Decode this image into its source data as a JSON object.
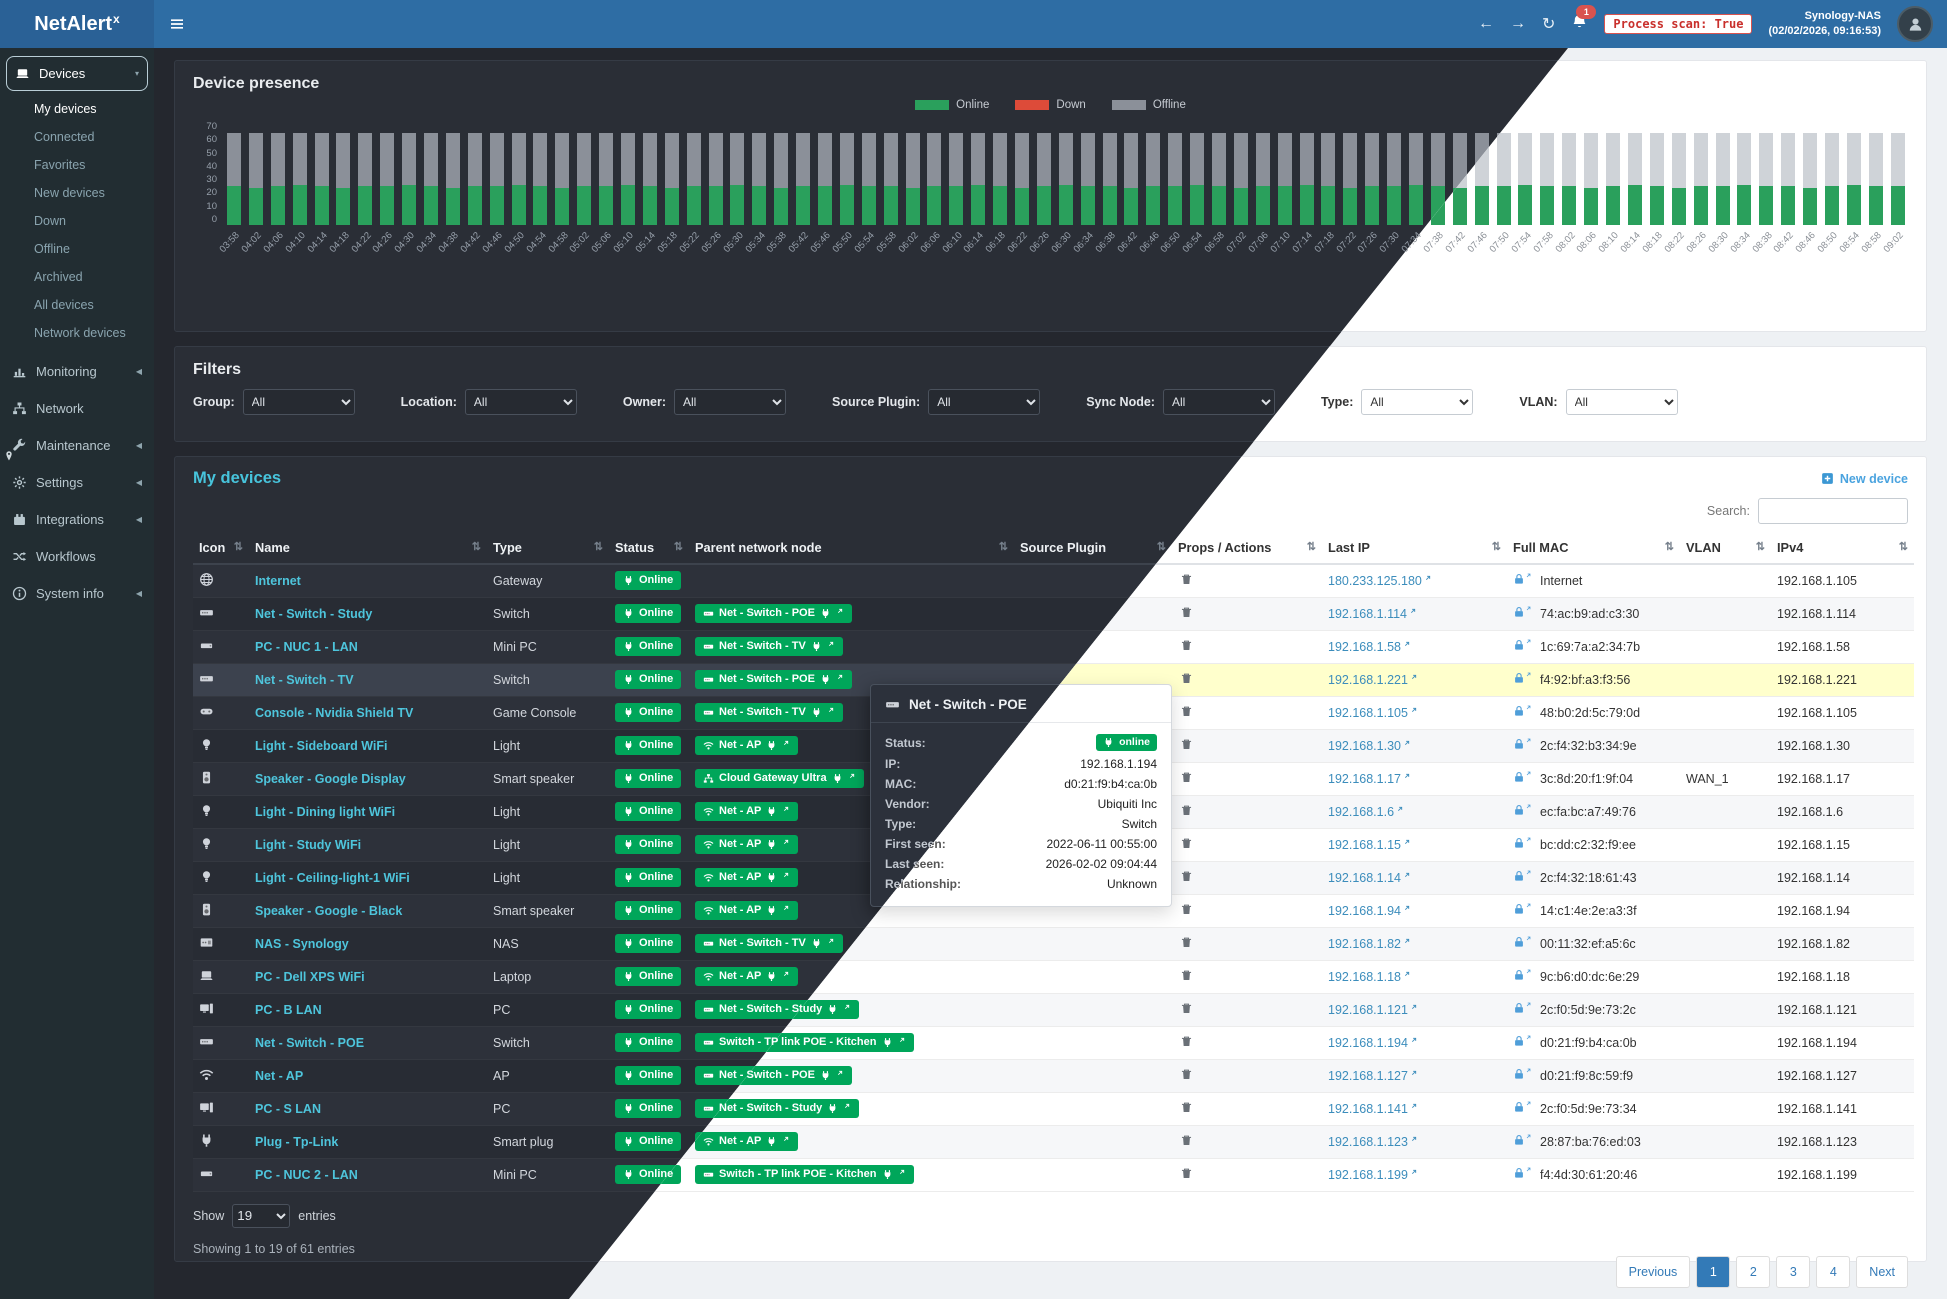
{
  "app": {
    "brand": "NetAlert",
    "brand_sup": "x"
  },
  "header": {
    "process_scan": "Process scan: True",
    "host": "Synology-NAS",
    "timestamp": "(02/02/2026, 09:16:53)",
    "notification_count": "1"
  },
  "sidebar": {
    "items": [
      {
        "label": "Devices",
        "icon": "laptop",
        "chevron": "down",
        "active": true,
        "children": [
          "My devices",
          "Connected",
          "Favorites",
          "New devices",
          "Down",
          "Offline",
          "Archived",
          "All devices",
          "Network devices"
        ]
      },
      {
        "label": "Monitoring",
        "icon": "chart",
        "chevron": "left"
      },
      {
        "label": "Network",
        "icon": "sitemap",
        "chevron": null
      },
      {
        "label": "Maintenance",
        "icon": "wrench",
        "chevron": "left"
      },
      {
        "label": "Settings",
        "icon": "gear",
        "chevron": "left"
      },
      {
        "label": "Integrations",
        "icon": "puzzle",
        "chevron": "left"
      },
      {
        "label": "Workflows",
        "icon": "shuffle",
        "chevron": null
      },
      {
        "label": "System info",
        "icon": "info",
        "chevron": "left"
      }
    ]
  },
  "chart_data": {
    "type": "bar",
    "stacked": true,
    "title": "Device presence",
    "xlabel": "",
    "ylabel": "",
    "ylim": [
      0,
      70
    ],
    "yticks": [
      0,
      10,
      20,
      30,
      40,
      50,
      60,
      70
    ],
    "legend_position": "top-center",
    "x": [
      "03:58",
      "04:02",
      "04:06",
      "04:10",
      "04:14",
      "04:18",
      "04:22",
      "04:26",
      "04:30",
      "04:34",
      "04:38",
      "04:42",
      "04:46",
      "04:50",
      "04:54",
      "04:58",
      "05:02",
      "05:06",
      "05:10",
      "05:14",
      "05:18",
      "05:22",
      "05:26",
      "05:30",
      "05:34",
      "05:38",
      "05:42",
      "05:46",
      "05:50",
      "05:54",
      "05:58",
      "06:02",
      "06:06",
      "06:10",
      "06:14",
      "06:18",
      "06:22",
      "06:26",
      "06:30",
      "06:34",
      "06:38",
      "06:42",
      "06:46",
      "06:50",
      "06:54",
      "06:58",
      "07:02",
      "07:06",
      "07:10",
      "07:14",
      "07:18",
      "07:22",
      "07:26",
      "07:30",
      "07:34",
      "07:38",
      "07:42",
      "07:46",
      "07:50",
      "07:54",
      "07:58",
      "08:02",
      "08:06",
      "08:10",
      "08:14",
      "08:18",
      "08:22",
      "08:26",
      "08:30",
      "08:34",
      "08:38",
      "08:42",
      "08:46",
      "08:50",
      "08:54",
      "08:58",
      "09:02"
    ],
    "series": [
      {
        "name": "Online",
        "color": "#2aa05c",
        "values": [
          26,
          25,
          26,
          27,
          26,
          25,
          26,
          26,
          27,
          26,
          25,
          26,
          26,
          27,
          26,
          25,
          26,
          26,
          27,
          26,
          25,
          26,
          26,
          27,
          26,
          25,
          26,
          26,
          27,
          26,
          26,
          25,
          26,
          26,
          27,
          26,
          25,
          26,
          27,
          26,
          26,
          25,
          26,
          26,
          27,
          26,
          25,
          26,
          26,
          27,
          26,
          25,
          26,
          26,
          27,
          26,
          25,
          26,
          26,
          27,
          26,
          26,
          25,
          26,
          27,
          26,
          25,
          26,
          26,
          27,
          26,
          26,
          25,
          26,
          27,
          26,
          26
        ]
      },
      {
        "name": "Down",
        "color": "#dd4b39",
        "values": [
          0,
          0,
          0,
          0,
          0,
          0,
          0,
          0,
          0,
          0,
          0,
          0,
          0,
          0,
          0,
          0,
          0,
          0,
          0,
          0,
          0,
          0,
          0,
          0,
          0,
          0,
          0,
          0,
          0,
          0,
          0,
          0,
          0,
          0,
          0,
          0,
          0,
          0,
          0,
          0,
          0,
          0,
          0,
          0,
          0,
          0,
          0,
          0,
          0,
          0,
          0,
          0,
          0,
          0,
          0,
          0,
          0,
          0,
          0,
          0,
          0,
          0,
          0,
          0,
          0,
          0,
          0,
          0,
          0,
          0,
          0,
          0,
          0,
          0,
          0,
          0,
          0
        ]
      },
      {
        "name": "Offline",
        "color": "#8b9099",
        "values": [
          36,
          37,
          36,
          35,
          36,
          37,
          36,
          36,
          35,
          36,
          37,
          36,
          36,
          35,
          36,
          37,
          36,
          36,
          35,
          36,
          37,
          36,
          36,
          35,
          36,
          37,
          36,
          36,
          35,
          36,
          36,
          37,
          36,
          36,
          35,
          36,
          37,
          36,
          35,
          36,
          36,
          37,
          36,
          36,
          35,
          36,
          37,
          36,
          36,
          35,
          36,
          37,
          36,
          36,
          35,
          36,
          37,
          36,
          36,
          35,
          36,
          36,
          37,
          36,
          35,
          36,
          37,
          36,
          36,
          35,
          36,
          36,
          37,
          36,
          35,
          36,
          36
        ]
      }
    ]
  },
  "filters": {
    "title": "Filters",
    "fields": [
      {
        "label": "Group:",
        "value": "All"
      },
      {
        "label": "Location:",
        "value": "All"
      },
      {
        "label": "Owner:",
        "value": "All"
      },
      {
        "label": "Source Plugin:",
        "value": "All"
      },
      {
        "label": "Sync Node:",
        "value": "All"
      },
      {
        "label": "Type:",
        "value": "All"
      },
      {
        "label": "VLAN:",
        "value": "All"
      }
    ]
  },
  "devices": {
    "title": "My devices",
    "new_device_label": "New device",
    "search_label": "Search:",
    "columns": [
      "Icon",
      "Name",
      "Type",
      "Status",
      "Parent network node",
      "Source Plugin",
      "Props / Actions",
      "Last IP",
      "Full MAC",
      "VLAN",
      "IPv4"
    ],
    "rows": [
      {
        "icon": "globe",
        "name": "Internet",
        "type": "Gateway",
        "status": "Online",
        "parent": null,
        "plugin": "",
        "last_ip": "180.233.125.180",
        "mac": "Internet",
        "vlan": "",
        "ipv4": "192.168.1.105",
        "selected": false
      },
      {
        "icon": "switch",
        "name": "Net - Switch - Study",
        "type": "Switch",
        "status": "Online",
        "parent": {
          "name": "Net - Switch - POE",
          "icon": "switch"
        },
        "plugin": "",
        "last_ip": "192.168.1.114",
        "mac": "74:ac:b9:ad:c3:30",
        "vlan": "",
        "ipv4": "192.168.1.114",
        "selected": false
      },
      {
        "icon": "mini-pc",
        "name": "PC - NUC 1 - LAN",
        "type": "Mini PC",
        "status": "Online",
        "parent": {
          "name": "Net - Switch - TV",
          "icon": "switch"
        },
        "plugin": "",
        "last_ip": "192.168.1.58",
        "mac": "1c:69:7a:a2:34:7b",
        "vlan": "",
        "ipv4": "192.168.1.58",
        "selected": false
      },
      {
        "icon": "switch",
        "name": "Net - Switch - TV",
        "type": "Switch",
        "status": "Online",
        "parent": {
          "name": "Net - Switch - POE",
          "icon": "switch"
        },
        "plugin": "",
        "last_ip": "192.168.1.221",
        "mac": "f4:92:bf:a3:f3:56",
        "vlan": "",
        "ipv4": "192.168.1.221",
        "selected": true
      },
      {
        "icon": "game-console",
        "name": "Console - Nvidia Shield TV",
        "type": "Game Console",
        "status": "Online",
        "parent": {
          "name": "Net - Switch - TV",
          "icon": "switch"
        },
        "plugin": "",
        "last_ip": "192.168.1.105",
        "mac": "48:b0:2d:5c:79:0d",
        "vlan": "",
        "ipv4": "192.168.1.105",
        "selected": false
      },
      {
        "icon": "light",
        "name": "Light - Sideboard WiFi",
        "type": "Light",
        "status": "Online",
        "parent": {
          "name": "Net - AP",
          "icon": "wifi"
        },
        "plugin": "",
        "last_ip": "192.168.1.30",
        "mac": "2c:f4:32:b3:34:9e",
        "vlan": "",
        "ipv4": "192.168.1.30",
        "selected": false
      },
      {
        "icon": "speaker",
        "name": "Speaker - Google Display",
        "type": "Smart speaker",
        "status": "Online",
        "parent": {
          "name": "Cloud Gateway Ultra",
          "icon": "sitemap"
        },
        "plugin": "",
        "last_ip": "192.168.1.17",
        "mac": "3c:8d:20:f1:9f:04",
        "vlan": "WAN_1",
        "ipv4": "192.168.1.17",
        "selected": false
      },
      {
        "icon": "light",
        "name": "Light - Dining light WiFi",
        "type": "Light",
        "status": "Online",
        "parent": {
          "name": "Net - AP",
          "icon": "wifi"
        },
        "plugin": "",
        "last_ip": "192.168.1.6",
        "mac": "ec:fa:bc:a7:49:76",
        "vlan": "",
        "ipv4": "192.168.1.6",
        "selected": false
      },
      {
        "icon": "light",
        "name": "Light - Study WiFi",
        "type": "Light",
        "status": "Online",
        "parent": {
          "name": "Net - AP",
          "icon": "wifi"
        },
        "plugin": "",
        "last_ip": "192.168.1.15",
        "mac": "bc:dd:c2:32:f9:ee",
        "vlan": "",
        "ipv4": "192.168.1.15",
        "selected": false
      },
      {
        "icon": "light",
        "name": "Light - Ceiling-light-1 WiFi",
        "type": "Light",
        "status": "Online",
        "parent": {
          "name": "Net - AP",
          "icon": "wifi"
        },
        "plugin": "",
        "last_ip": "192.168.1.14",
        "mac": "2c:f4:32:18:61:43",
        "vlan": "",
        "ipv4": "192.168.1.14",
        "selected": false
      },
      {
        "icon": "speaker",
        "name": "Speaker - Google - Black",
        "type": "Smart speaker",
        "status": "Online",
        "parent": {
          "name": "Net - AP",
          "icon": "wifi"
        },
        "plugin": "",
        "last_ip": "192.168.1.94",
        "mac": "14:c1:4e:2e:a3:3f",
        "vlan": "",
        "ipv4": "192.168.1.94",
        "selected": false
      },
      {
        "icon": "nas",
        "name": "NAS - Synology",
        "type": "NAS",
        "status": "Online",
        "parent": {
          "name": "Net - Switch - TV",
          "icon": "switch"
        },
        "plugin": "",
        "last_ip": "192.168.1.82",
        "mac": "00:11:32:ef:a5:6c",
        "vlan": "",
        "ipv4": "192.168.1.82",
        "selected": false
      },
      {
        "icon": "laptop",
        "name": "PC - Dell XPS WiFi",
        "type": "Laptop",
        "status": "Online",
        "parent": {
          "name": "Net - AP",
          "icon": "wifi"
        },
        "plugin": "",
        "last_ip": "192.168.1.18",
        "mac": "9c:b6:d0:dc:6e:29",
        "vlan": "",
        "ipv4": "192.168.1.18",
        "selected": false
      },
      {
        "icon": "pc",
        "name": "PC - B LAN",
        "type": "PC",
        "status": "Online",
        "parent": {
          "name": "Net - Switch - Study",
          "icon": "switch"
        },
        "plugin": "",
        "last_ip": "192.168.1.121",
        "mac": "2c:f0:5d:9e:73:2c",
        "vlan": "",
        "ipv4": "192.168.1.121",
        "selected": false
      },
      {
        "icon": "switch",
        "name": "Net - Switch - POE",
        "type": "Switch",
        "status": "Online",
        "parent": {
          "name": "Switch - TP link POE - Kitchen",
          "icon": "switch"
        },
        "plugin": "",
        "last_ip": "192.168.1.194",
        "mac": "d0:21:f9:b4:ca:0b",
        "vlan": "",
        "ipv4": "192.168.1.194",
        "selected": false
      },
      {
        "icon": "wifi",
        "name": "Net - AP",
        "type": "AP",
        "status": "Online",
        "parent": {
          "name": "Net - Switch - POE",
          "icon": "switch"
        },
        "plugin": "",
        "last_ip": "192.168.1.127",
        "mac": "d0:21:f9:8c:59:f9",
        "vlan": "",
        "ipv4": "192.168.1.127",
        "selected": false
      },
      {
        "icon": "pc",
        "name": "PC - S LAN",
        "type": "PC",
        "status": "Online",
        "parent": {
          "name": "Net - Switch - Study",
          "icon": "switch"
        },
        "plugin": "",
        "last_ip": "192.168.1.141",
        "mac": "2c:f0:5d:9e:73:34",
        "vlan": "",
        "ipv4": "192.168.1.141",
        "selected": false
      },
      {
        "icon": "plug-device",
        "name": "Plug - Tp-Link",
        "type": "Smart plug",
        "status": "Online",
        "parent": {
          "name": "Net - AP",
          "icon": "wifi"
        },
        "plugin": "",
        "last_ip": "192.168.1.123",
        "mac": "28:87:ba:76:ed:03",
        "vlan": "",
        "ipv4": "192.168.1.123",
        "selected": false
      },
      {
        "icon": "mini-pc",
        "name": "PC - NUC 2 - LAN",
        "type": "Mini PC",
        "status": "Online",
        "parent": {
          "name": "Switch - TP link POE - Kitchen",
          "icon": "switch"
        },
        "plugin": "",
        "last_ip": "192.168.1.199",
        "mac": "f4:4d:30:61:20:46",
        "vlan": "",
        "ipv4": "192.168.1.199",
        "selected": false
      }
    ],
    "footer": {
      "show_label": "Show",
      "entries_label": "entries",
      "page_length": "19",
      "summary": "Showing 1 to 19 of 61 entries",
      "pages": [
        "Previous",
        "1",
        "2",
        "3",
        "4",
        "Next"
      ],
      "active": "1"
    }
  },
  "tooltip": {
    "title": "Net - Switch - POE",
    "rows": [
      {
        "label": "Status:",
        "value": "online",
        "pill": true
      },
      {
        "label": "IP:",
        "value": "192.168.1.194"
      },
      {
        "label": "MAC:",
        "value": "d0:21:f9:b4:ca:0b"
      },
      {
        "label": "Vendor:",
        "value": "Ubiquiti Inc"
      },
      {
        "label": "Type:",
        "value": "Switch"
      },
      {
        "label": "First seen:",
        "value": "2022-06-11 00:55:00"
      },
      {
        "label": "Last seen:",
        "value": "2026-02-02 09:04:44"
      },
      {
        "label": "Relationship:",
        "value": "Unknown"
      }
    ]
  }
}
